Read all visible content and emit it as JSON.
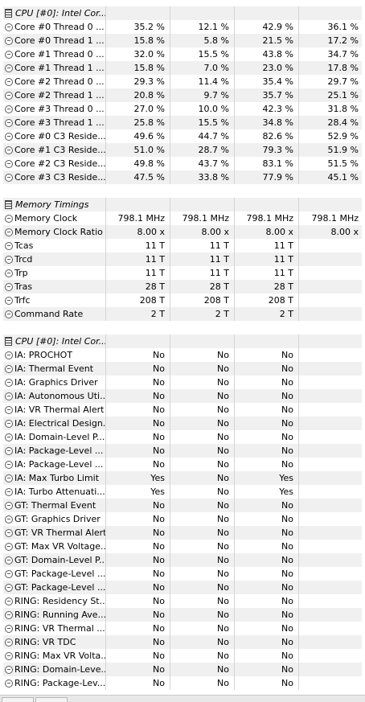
{
  "groups": [
    {
      "title": "CPU [#0]: Intel Cor...",
      "rows": [
        {
          "label": "Core #0 Thread 0 ...",
          "values": [
            "35.2 %",
            "12.1 %",
            "42.9 %",
            "36.1 %"
          ]
        },
        {
          "label": "Core #0 Thread 1 ...",
          "values": [
            "15.8 %",
            "5.8 %",
            "21.5 %",
            "17.2 %"
          ]
        },
        {
          "label": "Core #1 Thread 0 ...",
          "values": [
            "32.0 %",
            "15.5 %",
            "43.8 %",
            "34.7 %"
          ]
        },
        {
          "label": "Core #1 Thread 1 ...",
          "values": [
            "15.8 %",
            "7.0 %",
            "23.0 %",
            "17.8 %"
          ]
        },
        {
          "label": "Core #2 Thread 0 ...",
          "values": [
            "29.3 %",
            "11.4 %",
            "35.4 %",
            "29.7 %"
          ]
        },
        {
          "label": "Core #2 Thread 1 ...",
          "values": [
            "20.8 %",
            "9.7 %",
            "35.7 %",
            "25.1 %"
          ]
        },
        {
          "label": "Core #3 Thread 0 ...",
          "values": [
            "27.0 %",
            "10.0 %",
            "42.3 %",
            "31.8 %"
          ]
        },
        {
          "label": "Core #3 Thread 1 ...",
          "values": [
            "25.8 %",
            "15.5 %",
            "34.8 %",
            "28.4 %"
          ]
        },
        {
          "label": "Core #0 C3 Reside...",
          "values": [
            "49.6 %",
            "44.7 %",
            "82.6 %",
            "52.9 %"
          ]
        },
        {
          "label": "Core #1 C3 Reside...",
          "values": [
            "51.0 %",
            "28.7 %",
            "79.3 %",
            "51.9 %"
          ]
        },
        {
          "label": "Core #2 C3 Reside...",
          "values": [
            "49.8 %",
            "43.7 %",
            "83.1 %",
            "51.5 %"
          ]
        },
        {
          "label": "Core #3 C3 Reside...",
          "values": [
            "47.5 %",
            "33.8 %",
            "77.9 %",
            "45.1 %"
          ]
        }
      ]
    },
    {
      "title": "Memory Timings",
      "rows": [
        {
          "label": "Memory Clock",
          "values": [
            "798.1 MHz",
            "798.1 MHz",
            "798.1 MHz",
            "798.1 MHz"
          ]
        },
        {
          "label": "Memory Clock Ratio",
          "values": [
            "8.00 x",
            "8.00 x",
            "8.00 x",
            "8.00 x"
          ]
        },
        {
          "label": "Tcas",
          "values": [
            "11 T",
            "11 T",
            "11 T",
            ""
          ]
        },
        {
          "label": "Trcd",
          "values": [
            "11 T",
            "11 T",
            "11 T",
            ""
          ]
        },
        {
          "label": "Trp",
          "values": [
            "11 T",
            "11 T",
            "11 T",
            ""
          ]
        },
        {
          "label": "Tras",
          "values": [
            "28 T",
            "28 T",
            "28 T",
            ""
          ]
        },
        {
          "label": "Trfc",
          "values": [
            "208 T",
            "208 T",
            "208 T",
            ""
          ]
        },
        {
          "label": "Command Rate",
          "values": [
            "2 T",
            "2 T",
            "2 T",
            ""
          ]
        }
      ]
    },
    {
      "title": "CPU [#0]: Intel Cor...",
      "rows": [
        {
          "label": "IA: PROCHOT",
          "values": [
            "No",
            "No",
            "No",
            ""
          ]
        },
        {
          "label": "IA: Thermal Event",
          "values": [
            "No",
            "No",
            "No",
            ""
          ]
        },
        {
          "label": "IA: Graphics Driver",
          "values": [
            "No",
            "No",
            "No",
            ""
          ]
        },
        {
          "label": "IA: Autonomous Uti...",
          "values": [
            "No",
            "No",
            "No",
            ""
          ]
        },
        {
          "label": "IA: VR Thermal Alert",
          "values": [
            "No",
            "No",
            "No",
            ""
          ]
        },
        {
          "label": "IA: Electrical Design...",
          "values": [
            "No",
            "No",
            "No",
            ""
          ]
        },
        {
          "label": "IA: Domain-Level P...",
          "values": [
            "No",
            "No",
            "No",
            ""
          ]
        },
        {
          "label": "IA: Package-Level ...",
          "values": [
            "No",
            "No",
            "No",
            ""
          ]
        },
        {
          "label": "IA: Package-Level ...",
          "values": [
            "No",
            "No",
            "No",
            ""
          ]
        },
        {
          "label": "IA: Max Turbo Limit",
          "values": [
            "Yes",
            "No",
            "Yes",
            ""
          ]
        },
        {
          "label": "IA: Turbo Attenuati...",
          "values": [
            "Yes",
            "No",
            "Yes",
            ""
          ]
        },
        {
          "label": "GT: Thermal Event",
          "values": [
            "No",
            "No",
            "No",
            ""
          ]
        },
        {
          "label": "GT: Graphics Driver",
          "values": [
            "No",
            "No",
            "No",
            ""
          ]
        },
        {
          "label": "GT: VR Thermal Alert",
          "values": [
            "No",
            "No",
            "No",
            ""
          ]
        },
        {
          "label": "GT: Max VR Voltage...",
          "values": [
            "No",
            "No",
            "No",
            ""
          ]
        },
        {
          "label": "GT: Domain-Level P...",
          "values": [
            "No",
            "No",
            "No",
            ""
          ]
        },
        {
          "label": "GT: Package-Level ...",
          "values": [
            "No",
            "No",
            "No",
            ""
          ]
        },
        {
          "label": "GT: Package-Level ...",
          "values": [
            "No",
            "No",
            "No",
            ""
          ]
        },
        {
          "label": "RING: Residency St...",
          "values": [
            "No",
            "No",
            "No",
            ""
          ]
        },
        {
          "label": "RING: Running Ave...",
          "values": [
            "No",
            "No",
            "No",
            ""
          ]
        },
        {
          "label": "RING: VR Thermal ...",
          "values": [
            "No",
            "No",
            "No",
            ""
          ]
        },
        {
          "label": "RING: VR TDC",
          "values": [
            "No",
            "No",
            "No",
            ""
          ]
        },
        {
          "label": "RING: Max VR Volta...",
          "values": [
            "No",
            "No",
            "No",
            ""
          ]
        },
        {
          "label": "RING: Domain-Leve...",
          "values": [
            "No",
            "No",
            "No",
            ""
          ]
        },
        {
          "label": "RING: Package-Lev...",
          "values": [
            "No",
            "No",
            "No",
            ""
          ]
        }
      ]
    }
  ],
  "icons": {
    "group": "sensor-group-icon",
    "row": "sensor-icon"
  },
  "colors": {
    "row_shaded": "#f0f0f0",
    "row_white": "#ffffff",
    "grid_line": "#d4d4d4"
  }
}
